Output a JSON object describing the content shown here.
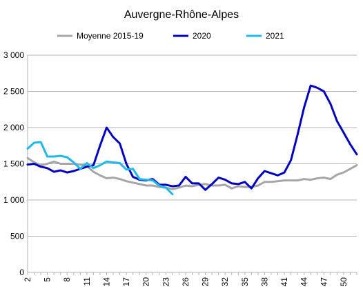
{
  "chart_data": {
    "type": "line",
    "title": "Auvergne-Rhône-Alpes",
    "xlabel": "",
    "ylabel": "",
    "ylim": [
      0,
      3000
    ],
    "y_ticks": [
      0,
      500,
      1000,
      1500,
      2000,
      2500,
      3000
    ],
    "y_tick_labels": [
      "0",
      "500",
      "1 000",
      "1 500",
      "2 000",
      "2 500",
      "3 000"
    ],
    "xlim": [
      2,
      52
    ],
    "x_tick_labels": [
      "2",
      "5",
      "8",
      "11",
      "14",
      "17",
      "20",
      "23",
      "26",
      "29",
      "32",
      "35",
      "38",
      "41",
      "44",
      "47",
      "50"
    ],
    "x_tick_values": [
      2,
      5,
      8,
      11,
      14,
      17,
      20,
      23,
      26,
      29,
      32,
      35,
      38,
      41,
      44,
      47,
      50
    ],
    "grid": "horizontal",
    "legend_position": "top",
    "series": [
      {
        "name": "Moyenne 2015-19",
        "color": "#A6A6A6",
        "x": [
          2,
          3,
          4,
          5,
          6,
          7,
          8,
          9,
          10,
          11,
          12,
          13,
          14,
          15,
          16,
          17,
          18,
          19,
          20,
          21,
          22,
          23,
          24,
          25,
          26,
          27,
          28,
          29,
          30,
          31,
          32,
          33,
          34,
          35,
          36,
          37,
          38,
          39,
          40,
          41,
          42,
          43,
          44,
          45,
          46,
          47,
          48,
          49,
          50,
          51,
          52
        ],
        "y": [
          1580,
          1520,
          1480,
          1500,
          1530,
          1500,
          1500,
          1500,
          1490,
          1470,
          1390,
          1340,
          1300,
          1310,
          1290,
          1260,
          1240,
          1220,
          1200,
          1200,
          1180,
          1170,
          1150,
          1170,
          1200,
          1190,
          1210,
          1220,
          1200,
          1200,
          1210,
          1160,
          1190,
          1180,
          1180,
          1200,
          1250,
          1250,
          1260,
          1270,
          1270,
          1270,
          1290,
          1280,
          1300,
          1310,
          1290,
          1350,
          1380,
          1430,
          1480
        ]
      },
      {
        "name": "2020",
        "color": "#0000C0",
        "x": [
          2,
          3,
          4,
          5,
          6,
          7,
          8,
          9,
          10,
          11,
          12,
          13,
          14,
          15,
          16,
          17,
          18,
          19,
          20,
          21,
          22,
          23,
          24,
          25,
          26,
          27,
          28,
          29,
          30,
          31,
          32,
          33,
          34,
          35,
          36,
          37,
          38,
          39,
          40,
          41,
          42,
          43,
          44,
          45,
          46,
          47,
          48,
          49,
          50,
          51,
          52
        ],
        "y": [
          1490,
          1500,
          1460,
          1440,
          1390,
          1410,
          1380,
          1400,
          1430,
          1460,
          1480,
          1750,
          2000,
          1870,
          1780,
          1500,
          1320,
          1280,
          1270,
          1290,
          1210,
          1210,
          1190,
          1200,
          1320,
          1230,
          1230,
          1140,
          1220,
          1310,
          1280,
          1230,
          1220,
          1250,
          1160,
          1300,
          1400,
          1370,
          1340,
          1380,
          1550,
          1900,
          2280,
          2580,
          2550,
          2500,
          2330,
          2090,
          1930,
          1770,
          1630
        ]
      },
      {
        "name": "2021",
        "color": "#1FB8E8",
        "x": [
          2,
          3,
          4,
          5,
          6,
          7,
          8,
          9,
          10,
          11,
          12,
          13,
          14,
          15,
          16,
          17,
          18,
          19,
          20,
          21,
          22,
          23,
          24
        ],
        "y": [
          1710,
          1790,
          1800,
          1600,
          1600,
          1610,
          1590,
          1520,
          1430,
          1510,
          1440,
          1480,
          1530,
          1520,
          1510,
          1420,
          1430,
          1290,
          1280,
          1270,
          1200,
          1170,
          1080
        ]
      }
    ]
  }
}
